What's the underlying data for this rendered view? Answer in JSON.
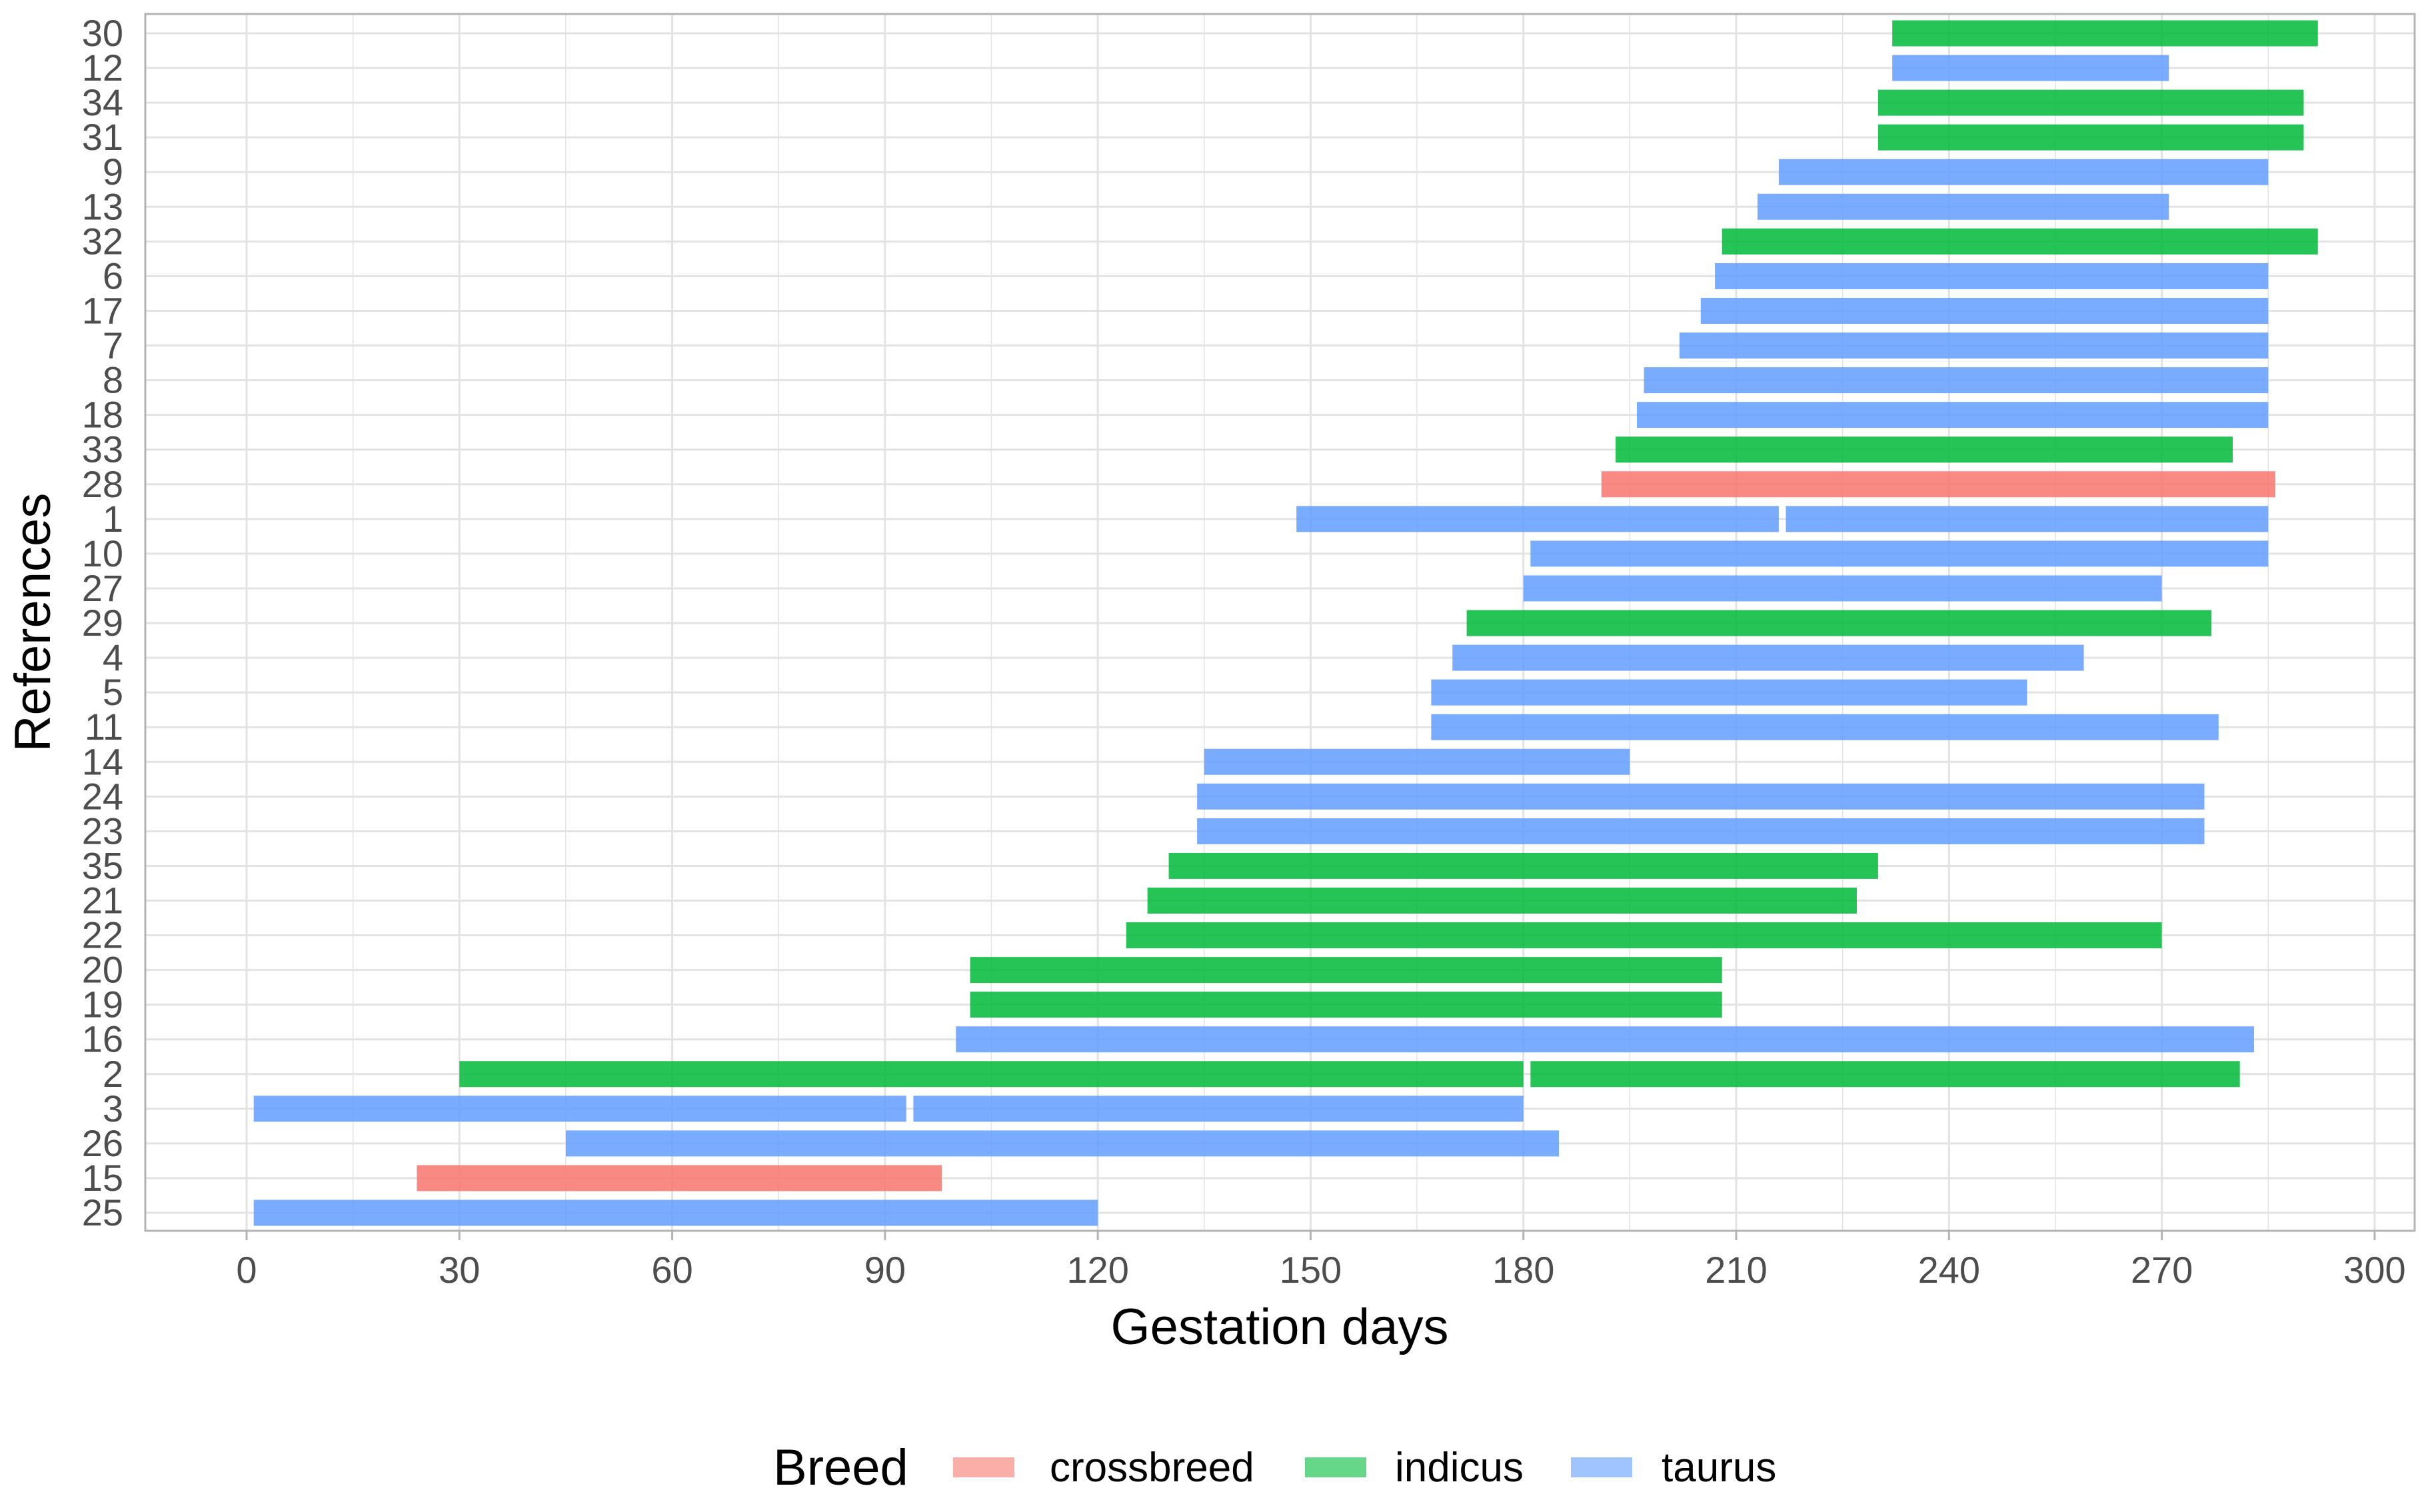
{
  "chart_data": {
    "type": "bar",
    "orientation": "horizontal-range",
    "title": "",
    "xlabel": "Gestation days",
    "ylabel": "References",
    "xlim": [
      -5,
      305
    ],
    "xticks": [
      0,
      30,
      60,
      90,
      120,
      150,
      180,
      210,
      240,
      270,
      300
    ],
    "grid": true,
    "legend": {
      "title": "Breed",
      "position": "bottom",
      "entries": [
        {
          "name": "crossbreed",
          "color": "#F8766D"
        },
        {
          "name": "indicus",
          "color": "#00BA38"
        },
        {
          "name": "taurus",
          "color": "#619CFF"
        }
      ]
    },
    "categories": [
      "30",
      "12",
      "34",
      "31",
      "9",
      "13",
      "32",
      "6",
      "17",
      "7",
      "8",
      "18",
      "33",
      "28",
      "1",
      "10",
      "27",
      "29",
      "4",
      "5",
      "11",
      "14",
      "24",
      "23",
      "35",
      "21",
      "22",
      "20",
      "19",
      "16",
      "2",
      "3",
      "26",
      "15",
      "25"
    ],
    "bars": [
      {
        "ref": "30",
        "breed": "indicus",
        "start": 232,
        "end": 292
      },
      {
        "ref": "12",
        "breed": "taurus",
        "start": 232,
        "end": 271
      },
      {
        "ref": "34",
        "breed": "indicus",
        "start": 230,
        "end": 290
      },
      {
        "ref": "31",
        "breed": "indicus",
        "start": 230,
        "end": 290
      },
      {
        "ref": "9",
        "breed": "taurus",
        "start": 216,
        "end": 285
      },
      {
        "ref": "13",
        "breed": "taurus",
        "start": 213,
        "end": 271
      },
      {
        "ref": "32",
        "breed": "indicus",
        "start": 208,
        "end": 292
      },
      {
        "ref": "6",
        "breed": "taurus",
        "start": 207,
        "end": 285
      },
      {
        "ref": "17",
        "breed": "taurus",
        "start": 205,
        "end": 285
      },
      {
        "ref": "7",
        "breed": "taurus",
        "start": 202,
        "end": 285
      },
      {
        "ref": "8",
        "breed": "taurus",
        "start": 197,
        "end": 285
      },
      {
        "ref": "18",
        "breed": "taurus",
        "start": 196,
        "end": 285
      },
      {
        "ref": "33",
        "breed": "indicus",
        "start": 193,
        "end": 280
      },
      {
        "ref": "28",
        "breed": "crossbreed",
        "start": 191,
        "end": 286
      },
      {
        "ref": "1",
        "breed": "taurus",
        "start": 148,
        "end": 216
      },
      {
        "ref": "1",
        "breed": "taurus",
        "start": 217,
        "end": 285
      },
      {
        "ref": "10",
        "breed": "taurus",
        "start": 181,
        "end": 285
      },
      {
        "ref": "27",
        "breed": "taurus",
        "start": 180,
        "end": 270
      },
      {
        "ref": "29",
        "breed": "indicus",
        "start": 172,
        "end": 277
      },
      {
        "ref": "4",
        "breed": "taurus",
        "start": 170,
        "end": 259
      },
      {
        "ref": "5",
        "breed": "taurus",
        "start": 167,
        "end": 251
      },
      {
        "ref": "11",
        "breed": "taurus",
        "start": 167,
        "end": 278
      },
      {
        "ref": "14",
        "breed": "taurus",
        "start": 135,
        "end": 195
      },
      {
        "ref": "24",
        "breed": "taurus",
        "start": 134,
        "end": 276
      },
      {
        "ref": "23",
        "breed": "taurus",
        "start": 134,
        "end": 276
      },
      {
        "ref": "35",
        "breed": "indicus",
        "start": 130,
        "end": 230
      },
      {
        "ref": "21",
        "breed": "indicus",
        "start": 127,
        "end": 227
      },
      {
        "ref": "22",
        "breed": "indicus",
        "start": 124,
        "end": 270
      },
      {
        "ref": "20",
        "breed": "indicus",
        "start": 102,
        "end": 208
      },
      {
        "ref": "19",
        "breed": "indicus",
        "start": 102,
        "end": 208
      },
      {
        "ref": "16",
        "breed": "taurus",
        "start": 100,
        "end": 283
      },
      {
        "ref": "2",
        "breed": "indicus",
        "start": 30,
        "end": 180
      },
      {
        "ref": "2",
        "breed": "indicus",
        "start": 181,
        "end": 281
      },
      {
        "ref": "3",
        "breed": "taurus",
        "start": 1,
        "end": 93
      },
      {
        "ref": "3",
        "breed": "taurus",
        "start": 94,
        "end": 180
      },
      {
        "ref": "26",
        "breed": "taurus",
        "start": 45,
        "end": 185
      },
      {
        "ref": "15",
        "breed": "crossbreed",
        "start": 24,
        "end": 98
      },
      {
        "ref": "25",
        "breed": "taurus",
        "start": 1,
        "end": 120
      }
    ]
  },
  "colors": {
    "crossbreed": "#F8766D",
    "indicus": "#00BA38",
    "taurus": "#619CFF",
    "grid": "#e3e3e3",
    "panel_border": "#b3b3b3"
  }
}
